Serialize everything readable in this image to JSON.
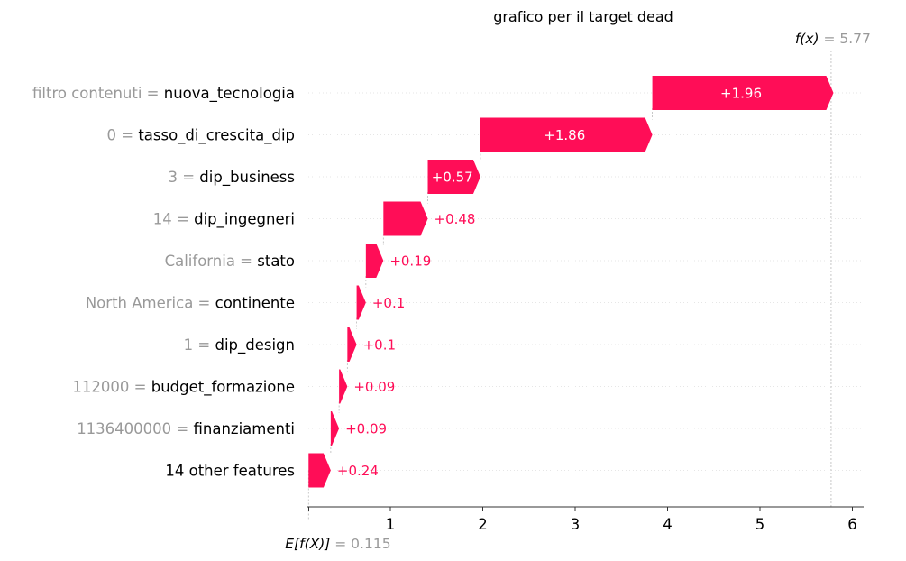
{
  "chart_data": {
    "type": "waterfall",
    "title": "grafico per il target dead",
    "base_value": {
      "label": "E[f(X)]",
      "value_text": "= 0.115",
      "value": 0.115
    },
    "output_value": {
      "label": "f(x)",
      "value_text": "= 5.77",
      "value": 5.77
    },
    "xlim": [
      0,
      6.1
    ],
    "x_ticks": [
      0,
      1,
      2,
      3,
      4,
      5,
      6
    ],
    "x_tick_labels": [
      "",
      "1",
      "2",
      "3",
      "4",
      "5",
      "6"
    ],
    "features": [
      {
        "value": "filtro contenuti",
        "name": "nuova_tecnologia",
        "contribution": 1.96,
        "label": "+1.96"
      },
      {
        "value": "0",
        "name": "tasso_di_crescita_dip",
        "contribution": 1.86,
        "label": "+1.86"
      },
      {
        "value": "3",
        "name": "dip_business",
        "contribution": 0.57,
        "label": "+0.57"
      },
      {
        "value": "14",
        "name": "dip_ingegneri",
        "contribution": 0.48,
        "label": "+0.48"
      },
      {
        "value": "California",
        "name": "stato",
        "contribution": 0.19,
        "label": "+0.19"
      },
      {
        "value": "North America",
        "name": "continente",
        "contribution": 0.1,
        "label": "+0.1"
      },
      {
        "value": "1",
        "name": "dip_design",
        "contribution": 0.1,
        "label": "+0.1"
      },
      {
        "value": "112000",
        "name": "budget_formazione",
        "contribution": 0.09,
        "label": "+0.09"
      },
      {
        "value": "1136400000",
        "name": "finanziamenti",
        "contribution": 0.09,
        "label": "+0.09"
      },
      {
        "value": "",
        "name": "14 other features",
        "contribution": 0.24,
        "label": "+0.24"
      }
    ],
    "colors": {
      "positive": "#ff0d57",
      "gridline": "#cccccc"
    }
  }
}
